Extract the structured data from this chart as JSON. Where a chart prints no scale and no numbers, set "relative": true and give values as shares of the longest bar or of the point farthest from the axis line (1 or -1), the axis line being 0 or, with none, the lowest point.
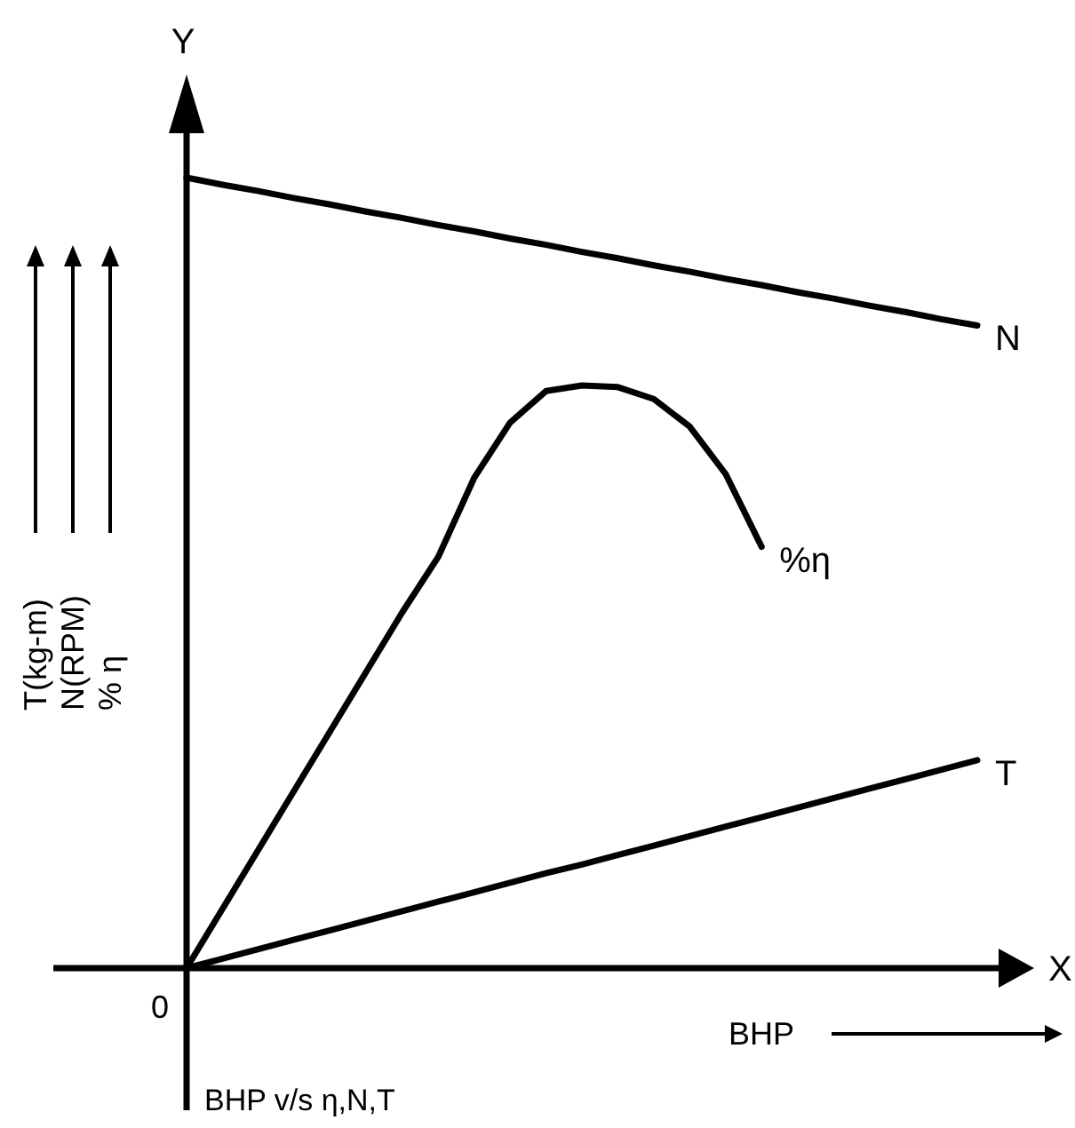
{
  "chart_data": {
    "type": "line",
    "relative": true,
    "title": "BHP v/s η,N,T",
    "xlabel": "X",
    "ylabel": "Y",
    "annotations": [
      "0",
      "BHP",
      "T(kg-m)",
      "N(RPM)",
      "% η"
    ],
    "categories": [
      null,
      null,
      null,
      null,
      null,
      null,
      null,
      null,
      null,
      null,
      null,
      null,
      null,
      null,
      null,
      null,
      null,
      null,
      null,
      null,
      null,
      null,
      null
    ],
    "series": [
      {
        "name": "N",
        "color": "#000000",
        "values": [
          1,
          0.991,
          0.983,
          0.974,
          0.966,
          0.957,
          0.949,
          0.94,
          0.932,
          0.923,
          0.915,
          0.906,
          0.898,
          0.889,
          0.881,
          0.872,
          0.864,
          0.855,
          0.847,
          0.838,
          0.83,
          0.821,
          0.813
        ]
      },
      {
        "name": "%η",
        "color": "#000000",
        "values": [
          0,
          0.075,
          0.15,
          0.225,
          0.3,
          0.375,
          0.45,
          0.52,
          0.62,
          0.69,
          0.73,
          0.737,
          0.735,
          0.72,
          0.685,
          0.625,
          0.533,
          null,
          null,
          null,
          null,
          null,
          null
        ]
      },
      {
        "name": "T",
        "color": "#000000",
        "values": [
          0,
          0.012,
          0.024,
          0.036,
          0.048,
          0.06,
          0.072,
          0.084,
          0.096,
          0.108,
          0.12,
          0.131,
          0.143,
          0.155,
          0.167,
          0.179,
          0.191,
          0.203,
          0.215,
          0.227,
          0.239,
          0.251,
          0.263
        ]
      }
    ]
  }
}
